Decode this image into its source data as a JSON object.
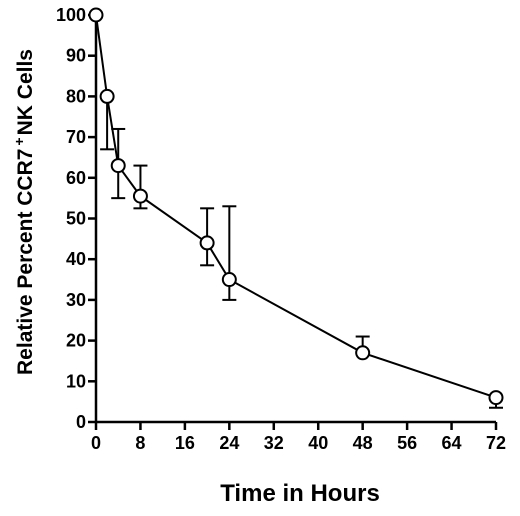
{
  "chart_data": {
    "type": "line",
    "xlabel": "Time in Hours",
    "ylabel_parts": {
      "before": "Relative Percent CCR7",
      "superscript": "+",
      "after": "NK Cells"
    },
    "xlim": [
      0,
      72
    ],
    "ylim": [
      0,
      100
    ],
    "x_ticks": [
      0,
      8,
      16,
      24,
      32,
      40,
      48,
      56,
      64,
      72
    ],
    "y_ticks": [
      0,
      10,
      20,
      30,
      40,
      50,
      60,
      70,
      80,
      90,
      100
    ],
    "grid": false,
    "legend": "none",
    "series": [
      {
        "points": [
          {
            "x": 0,
            "y": 100,
            "err_low": 100,
            "err_high": 100
          },
          {
            "x": 2,
            "y": 80,
            "err_low": 67,
            "err_high": 80
          },
          {
            "x": 4,
            "y": 63,
            "err_low": 55,
            "err_high": 72
          },
          {
            "x": 8,
            "y": 55.5,
            "err_low": 52.5,
            "err_high": 63
          },
          {
            "x": 20,
            "y": 44,
            "err_low": 38.5,
            "err_high": 52.5
          },
          {
            "x": 24,
            "y": 35,
            "err_low": 30,
            "err_high": 53
          },
          {
            "x": 48,
            "y": 17,
            "err_low": 17,
            "err_high": 21
          },
          {
            "x": 72,
            "y": 6,
            "err_low": 3.5,
            "err_high": 6
          }
        ]
      }
    ]
  }
}
